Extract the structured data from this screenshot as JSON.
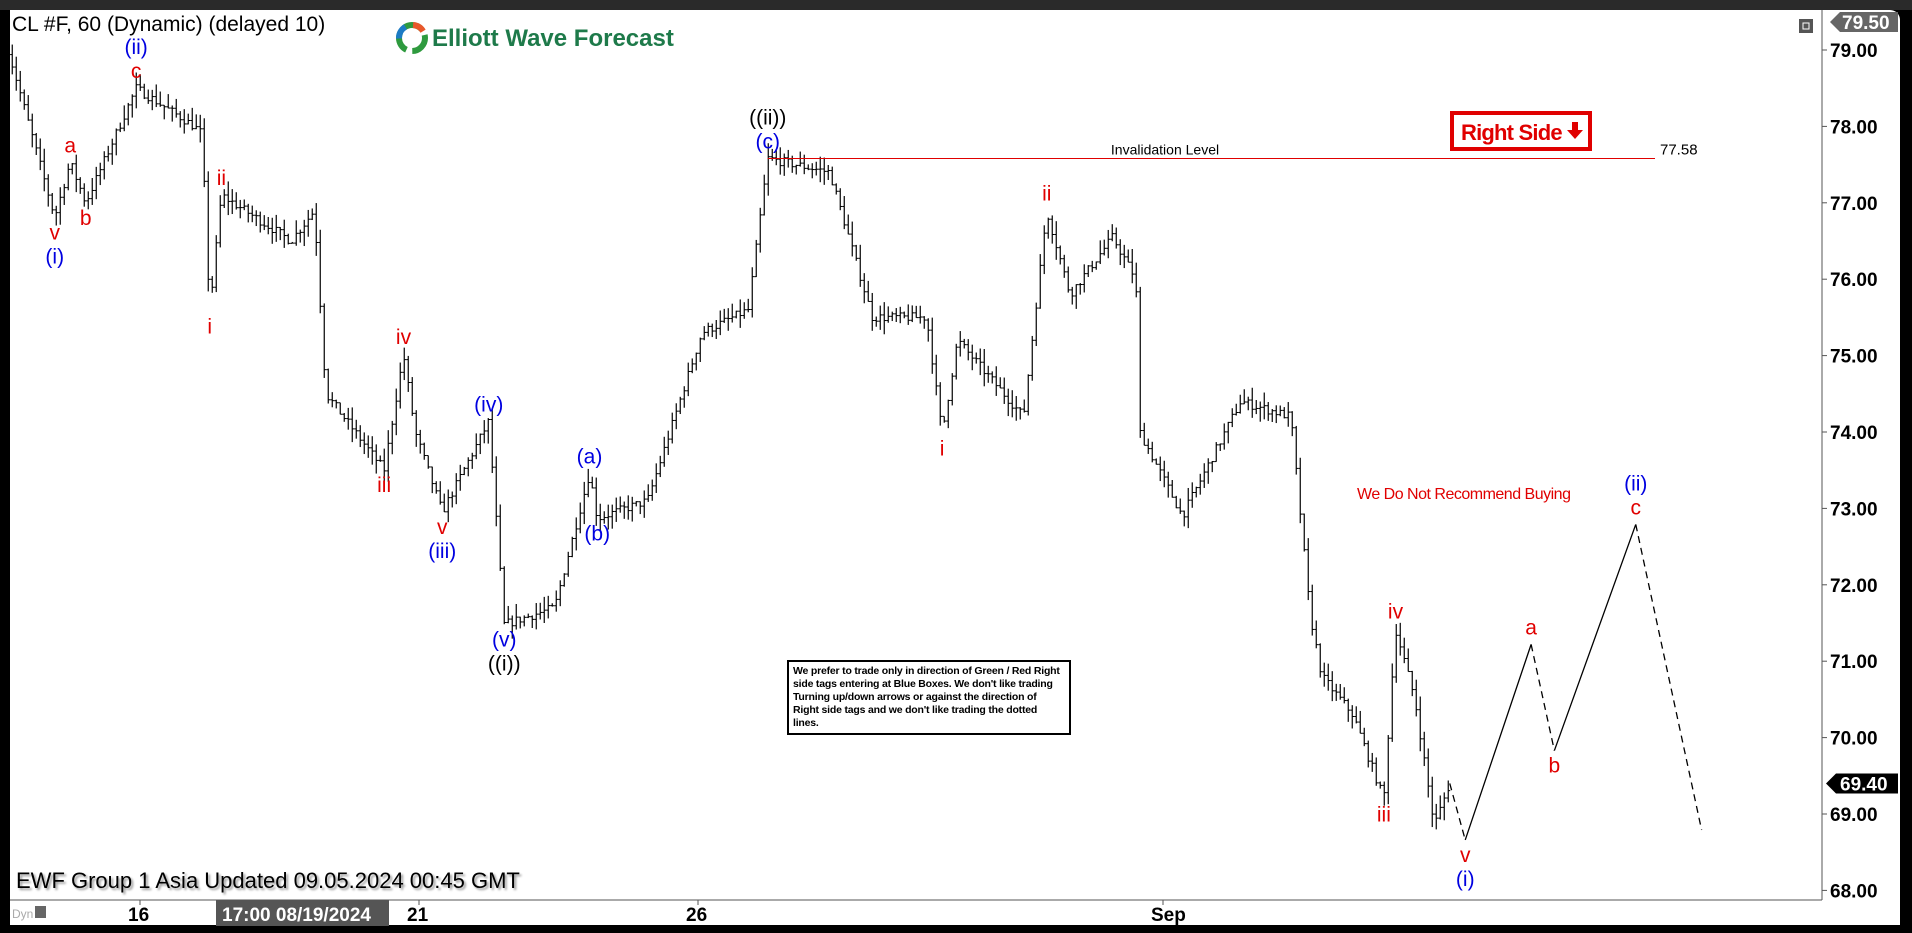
{
  "header": {
    "title": "CL #F, 60 (Dynamic) (delayed 10)",
    "logo_text": "Elliott Wave Forecast"
  },
  "footer": {
    "updated": "EWF Group 1 Asia Updated 09.05.2024 00:45 GMT",
    "dyn_label": "Dyn",
    "cursor_time": "17:00 08/19/2024"
  },
  "right_side_tag": {
    "label": "Right Side",
    "arrow": "down-arrow",
    "color": "#e00000"
  },
  "invalidation": {
    "label": "Invalidation Level",
    "value_label": "77.58",
    "price": 77.58,
    "from": "08/26 18:00",
    "color": "#e00000"
  },
  "note": {
    "text": "We Do Not Recommend Buying",
    "color": "#e00000"
  },
  "disclaimer": "We prefer to trade only in direction of Green / Red Right side tags entering at Blue Boxes. We don't like trading Turning up/down arrows or against the direction of Right side tags and we don't like trading the dotted lines.",
  "colors": {
    "red": "#e00000",
    "blue": "#0000e0",
    "black": "#000000",
    "bars": "#000000"
  },
  "chart_data": {
    "type": "ohlc-bar",
    "symbol": "CL #F",
    "timeframe": "60",
    "ylim": [
      68.0,
      79.5
    ],
    "y_ticks": [
      "79.00",
      "78.00",
      "77.00",
      "76.00",
      "75.00",
      "74.00",
      "73.00",
      "72.00",
      "71.00",
      "70.00",
      "69.00",
      "68.00"
    ],
    "x_ticks": [
      {
        "label": "16",
        "date": "08/16"
      },
      {
        "label": "21",
        "date": "08/21"
      },
      {
        "label": "26",
        "date": "08/26"
      },
      {
        "label": "Sep",
        "date": "09/02"
      }
    ],
    "top_price_marker": "79.50",
    "last_price_marker": "69.40",
    "last_price": 69.4,
    "price_path": [
      [
        "08/14 14:00",
        79.0
      ],
      [
        "08/15 02:00",
        76.81
      ],
      [
        "08/15 06:00",
        77.53
      ],
      [
        "08/15 10:00",
        77.0
      ],
      [
        "08/15 23:00",
        78.5
      ],
      [
        "08/16 14:00",
        78.0
      ],
      [
        "08/16 16:00",
        77.9
      ],
      [
        "08/16 18:00",
        75.58
      ],
      [
        "08/16 21:00",
        77.1
      ],
      [
        "08/19 15:00",
        76.5
      ],
      [
        "08/19 21:00",
        76.9
      ],
      [
        "08/20 00:00",
        74.5
      ],
      [
        "08/20 15:00",
        73.5
      ],
      [
        "08/20 20:00",
        75.02
      ],
      [
        "08/20 23:00",
        74.0
      ],
      [
        "08/21 06:00",
        72.95
      ],
      [
        "08/21 18:00",
        74.14
      ],
      [
        "08/21 22:00",
        71.48
      ],
      [
        "08/22 11:00",
        71.7
      ],
      [
        "08/22 20:00",
        73.46
      ],
      [
        "08/22 22:00",
        72.87
      ],
      [
        "08/23 11:00",
        73.1
      ],
      [
        "08/26 01:00",
        75.3
      ],
      [
        "08/26 13:00",
        75.6
      ],
      [
        "08/26 18:00",
        77.58
      ],
      [
        "08/27 10:00",
        77.4
      ],
      [
        "08/27 21:00",
        75.5
      ],
      [
        "08/28 11:00",
        75.5
      ],
      [
        "08/28 15:00",
        73.98
      ],
      [
        "08/28 19:00",
        75.2
      ],
      [
        "08/29 12:00",
        74.2
      ],
      [
        "08/29 18:00",
        76.9
      ],
      [
        "08/30 00:00",
        75.8
      ],
      [
        "08/30 11:00",
        76.55
      ],
      [
        "08/30 17:00",
        76.0
      ],
      [
        "08/30 18:00",
        74.0
      ],
      [
        "09/02 05:00",
        72.9
      ],
      [
        "09/02 20:00",
        74.4
      ],
      [
        "09/03 09:00",
        74.2
      ],
      [
        "09/03 14:00",
        71.6
      ],
      [
        "09/03 17:00",
        70.8
      ],
      [
        "09/04 01:00",
        70.3
      ],
      [
        "09/04 09:00",
        69.19
      ],
      [
        "09/04 12:00",
        71.43
      ],
      [
        "09/04 17:00",
        70.5
      ],
      [
        "09/04 22:00",
        68.85
      ],
      [
        "09/05 02:00",
        69.4
      ]
    ],
    "projection": {
      "points": [
        [
          "09/05 02:00",
          69.4
        ],
        [
          "09/05 06:00",
          68.66
        ],
        [
          "09/05 23:00",
          71.22
        ],
        [
          "09/06 05:00",
          69.83
        ],
        [
          "09/09 02:00",
          72.79
        ],
        [
          "09/09 19:00",
          68.79
        ]
      ],
      "dashed_segments": [
        0,
        2,
        4
      ]
    },
    "wave_labels": [
      {
        "at": [
          "08/15 02:00",
          76.81
        ],
        "side": "below",
        "lines": [
          [
            "v",
            "red"
          ],
          [
            "(i)",
            "blue"
          ]
        ]
      },
      {
        "at": [
          "08/15 06:00",
          77.53
        ],
        "side": "above",
        "lines": [
          [
            "a",
            "red"
          ]
        ]
      },
      {
        "at": [
          "08/15 10:00",
          77.0
        ],
        "side": "below",
        "lines": [
          [
            "b",
            "red"
          ]
        ]
      },
      {
        "at": [
          "08/15 23:00",
          78.5
        ],
        "side": "above",
        "lines": [
          [
            "c",
            "red"
          ],
          [
            "(ii)",
            "blue"
          ]
        ]
      },
      {
        "at": [
          "08/16 18:00",
          75.58
        ],
        "side": "below",
        "lines": [
          [
            "i",
            "red"
          ]
        ]
      },
      {
        "at": [
          "08/16 21:00",
          77.1
        ],
        "side": "above",
        "lines": [
          [
            "ii",
            "red"
          ]
        ]
      },
      {
        "at": [
          "08/20 15:00",
          73.5
        ],
        "side": "below",
        "lines": [
          [
            "iii",
            "red"
          ]
        ]
      },
      {
        "at": [
          "08/20 20:00",
          75.02
        ],
        "side": "above",
        "lines": [
          [
            "iv",
            "red"
          ]
        ]
      },
      {
        "at": [
          "08/21 06:00",
          72.95
        ],
        "side": "below",
        "lines": [
          [
            "v",
            "red"
          ],
          [
            "(iii)",
            "blue"
          ]
        ]
      },
      {
        "at": [
          "08/21 18:00",
          74.14
        ],
        "side": "above",
        "lines": [
          [
            "(iv)",
            "blue"
          ]
        ]
      },
      {
        "at": [
          "08/21 22:00",
          71.48
        ],
        "side": "below",
        "lines": [
          [
            "(v)",
            "blue"
          ],
          [
            "((i))",
            "black"
          ]
        ]
      },
      {
        "at": [
          "08/22 20:00",
          73.46
        ],
        "side": "above",
        "lines": [
          [
            "(a)",
            "blue"
          ]
        ]
      },
      {
        "at": [
          "08/22 22:00",
          72.87
        ],
        "side": "below",
        "lines": [
          [
            "(b)",
            "blue"
          ]
        ]
      },
      {
        "at": [
          "08/26 18:00",
          77.58
        ],
        "side": "above",
        "lines": [
          [
            "(c)",
            "blue"
          ],
          [
            "((ii))",
            "black"
          ]
        ]
      },
      {
        "at": [
          "08/28 15:00",
          73.98
        ],
        "side": "below",
        "lines": [
          [
            "i",
            "red"
          ]
        ]
      },
      {
        "at": [
          "08/29 18:00",
          76.9
        ],
        "side": "above",
        "lines": [
          [
            "ii",
            "red"
          ]
        ]
      },
      {
        "at": [
          "09/04 09:00",
          69.19
        ],
        "side": "below",
        "lines": [
          [
            "iii",
            "red"
          ]
        ]
      },
      {
        "at": [
          "09/04 12:00",
          71.43
        ],
        "side": "above",
        "lines": [
          [
            "iv",
            "red"
          ]
        ]
      },
      {
        "at": [
          "09/05 06:00",
          68.66
        ],
        "side": "below",
        "lines": [
          [
            "v",
            "red"
          ],
          [
            "(i)",
            "blue"
          ]
        ]
      },
      {
        "at": [
          "09/05 23:00",
          71.22
        ],
        "side": "above",
        "lines": [
          [
            "a",
            "red"
          ]
        ]
      },
      {
        "at": [
          "09/06 05:00",
          69.83
        ],
        "side": "below",
        "lines": [
          [
            "b",
            "red"
          ]
        ]
      },
      {
        "at": [
          "09/09 02:00",
          72.79
        ],
        "side": "above",
        "lines": [
          [
            "c",
            "red"
          ],
          [
            "(ii)",
            "blue"
          ]
        ]
      }
    ]
  }
}
